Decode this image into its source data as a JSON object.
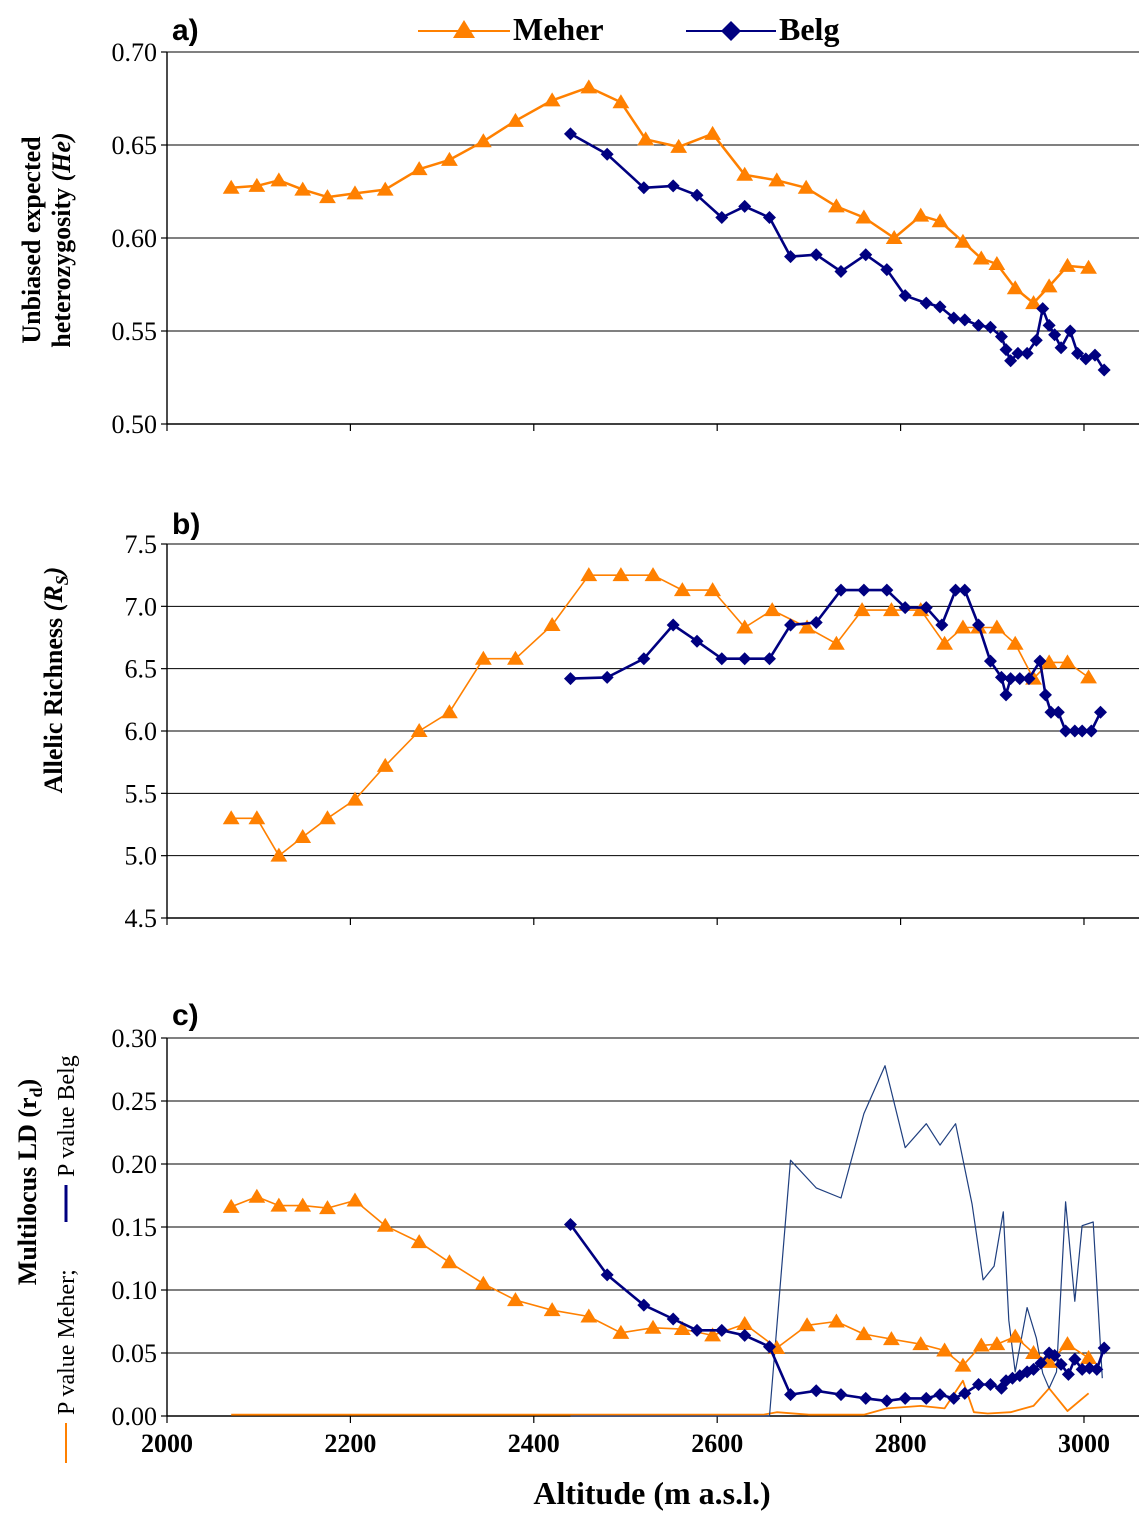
{
  "colors": {
    "meher": "#FF8000",
    "belg": "#000080",
    "belg_p": "#1F3F7F",
    "grid": "#000000"
  },
  "legend": {
    "meher": "Meher",
    "belg": "Belg"
  },
  "x_axis": {
    "label": "Altitude (m a.s.l.)",
    "ticks": [
      "2000",
      "2200",
      "2400",
      "2600",
      "2800",
      "3000"
    ]
  },
  "chart_data": [
    {
      "type": "line",
      "panel": "a)",
      "ylabel_line1": "Unbiased expected",
      "ylabel_line2": "heterozygosity",
      "ylabel_italic": "(He)",
      "xlim": [
        2000,
        3060
      ],
      "ylim": [
        0.5,
        0.7
      ],
      "yticks": [
        "0.50",
        "0.55",
        "0.60",
        "0.65",
        "0.70"
      ],
      "grid": true,
      "legend_position": "top",
      "series": [
        {
          "name": "Meher",
          "marker": "triangle",
          "points": [
            [
              2070,
              0.627
            ],
            [
              2098,
              0.628
            ],
            [
              2122,
              0.631
            ],
            [
              2148,
              0.626
            ],
            [
              2175,
              0.622
            ],
            [
              2205,
              0.624
            ],
            [
              2238,
              0.626
            ],
            [
              2275,
              0.637
            ],
            [
              2308,
              0.642
            ],
            [
              2345,
              0.652
            ],
            [
              2380,
              0.663
            ],
            [
              2420,
              0.674
            ],
            [
              2460,
              0.681
            ],
            [
              2495,
              0.673
            ],
            [
              2522,
              0.653
            ],
            [
              2558,
              0.649
            ],
            [
              2595,
              0.656
            ],
            [
              2630,
              0.634
            ],
            [
              2665,
              0.631
            ],
            [
              2697,
              0.627
            ],
            [
              2730,
              0.617
            ],
            [
              2760,
              0.611
            ],
            [
              2793,
              0.6
            ],
            [
              2822,
              0.612
            ],
            [
              2843,
              0.609
            ],
            [
              2868,
              0.598
            ],
            [
              2888,
              0.589
            ],
            [
              2905,
              0.586
            ],
            [
              2925,
              0.573
            ],
            [
              2945,
              0.565
            ],
            [
              2962,
              0.574
            ],
            [
              2982,
              0.585
            ],
            [
              3005,
              0.584
            ]
          ]
        },
        {
          "name": "Belg",
          "marker": "diamond",
          "points": [
            [
              2440,
              0.656
            ],
            [
              2480,
              0.645
            ],
            [
              2520,
              0.627
            ],
            [
              2552,
              0.628
            ],
            [
              2578,
              0.623
            ],
            [
              2605,
              0.611
            ],
            [
              2630,
              0.617
            ],
            [
              2657,
              0.611
            ],
            [
              2680,
              0.59
            ],
            [
              2708,
              0.591
            ],
            [
              2735,
              0.582
            ],
            [
              2762,
              0.591
            ],
            [
              2785,
              0.583
            ],
            [
              2805,
              0.569
            ],
            [
              2828,
              0.565
            ],
            [
              2843,
              0.563
            ],
            [
              2858,
              0.557
            ],
            [
              2870,
              0.556
            ],
            [
              2885,
              0.553
            ],
            [
              2898,
              0.552
            ],
            [
              2910,
              0.547
            ],
            [
              2915,
              0.54
            ],
            [
              2920,
              0.534
            ],
            [
              2928,
              0.538
            ],
            [
              2938,
              0.538
            ],
            [
              2948,
              0.545
            ],
            [
              2955,
              0.562
            ],
            [
              2962,
              0.553
            ],
            [
              2968,
              0.548
            ],
            [
              2975,
              0.541
            ],
            [
              2985,
              0.55
            ],
            [
              2993,
              0.538
            ],
            [
              3002,
              0.535
            ],
            [
              3012,
              0.537
            ],
            [
              3022,
              0.529
            ]
          ]
        }
      ]
    },
    {
      "type": "line",
      "panel": "b)",
      "ylabel_text": "Allelic Richness ",
      "ylabel_italic": "(R",
      "ylabel_sub": "S",
      "ylabel_close": ")",
      "xlim": [
        2000,
        3060
      ],
      "ylim": [
        4.5,
        7.5
      ],
      "yticks": [
        "4.5",
        "5.0",
        "5.5",
        "6.0",
        "6.5",
        "7.0",
        "7.5"
      ],
      "grid": true,
      "series": [
        {
          "name": "Meher",
          "marker": "triangle",
          "points": [
            [
              2070,
              5.3
            ],
            [
              2098,
              5.3
            ],
            [
              2122,
              5.0
            ],
            [
              2148,
              5.15
            ],
            [
              2175,
              5.3
            ],
            [
              2205,
              5.45
            ],
            [
              2238,
              5.72
            ],
            [
              2275,
              6.0
            ],
            [
              2308,
              6.15
            ],
            [
              2345,
              6.58
            ],
            [
              2380,
              6.58
            ],
            [
              2420,
              6.85
            ],
            [
              2460,
              7.25
            ],
            [
              2495,
              7.25
            ],
            [
              2530,
              7.25
            ],
            [
              2562,
              7.13
            ],
            [
              2595,
              7.13
            ],
            [
              2630,
              6.83
            ],
            [
              2660,
              6.97
            ],
            [
              2698,
              6.83
            ],
            [
              2730,
              6.7
            ],
            [
              2758,
              6.97
            ],
            [
              2790,
              6.97
            ],
            [
              2822,
              6.97
            ],
            [
              2848,
              6.7
            ],
            [
              2868,
              6.83
            ],
            [
              2885,
              6.83
            ],
            [
              2905,
              6.83
            ],
            [
              2925,
              6.7
            ],
            [
              2945,
              6.42
            ],
            [
              2962,
              6.55
            ],
            [
              2982,
              6.55
            ],
            [
              3005,
              6.43
            ]
          ]
        },
        {
          "name": "Belg",
          "marker": "diamond",
          "points": [
            [
              2440,
              6.42
            ],
            [
              2480,
              6.43
            ],
            [
              2520,
              6.58
            ],
            [
              2552,
              6.85
            ],
            [
              2578,
              6.72
            ],
            [
              2605,
              6.58
            ],
            [
              2630,
              6.58
            ],
            [
              2657,
              6.58
            ],
            [
              2680,
              6.85
            ],
            [
              2708,
              6.87
            ],
            [
              2735,
              7.13
            ],
            [
              2760,
              7.13
            ],
            [
              2785,
              7.13
            ],
            [
              2805,
              6.99
            ],
            [
              2828,
              6.99
            ],
            [
              2845,
              6.85
            ],
            [
              2860,
              7.13
            ],
            [
              2870,
              7.13
            ],
            [
              2885,
              6.85
            ],
            [
              2898,
              6.56
            ],
            [
              2910,
              6.43
            ],
            [
              2915,
              6.29
            ],
            [
              2920,
              6.42
            ],
            [
              2930,
              6.42
            ],
            [
              2940,
              6.42
            ],
            [
              2952,
              6.56
            ],
            [
              2958,
              6.29
            ],
            [
              2964,
              6.15
            ],
            [
              2972,
              6.15
            ],
            [
              2980,
              6.0
            ],
            [
              2990,
              6.0
            ],
            [
              2998,
              6.0
            ],
            [
              3008,
              6.0
            ],
            [
              3018,
              6.15
            ]
          ]
        }
      ]
    },
    {
      "type": "line",
      "panel": "c)",
      "ylabel_text": "Multilocus LD (r",
      "ylabel_sub": "d",
      "ylabel_close": ")",
      "legend_p_meher": "P value Meher;",
      "legend_p_belg": "P value Belg",
      "xlim": [
        2000,
        3060
      ],
      "ylim": [
        0.0,
        0.3
      ],
      "yticks": [
        "0.00",
        "0.05",
        "0.10",
        "0.15",
        "0.20",
        "0.25",
        "0.30"
      ],
      "grid": true,
      "series": [
        {
          "name": "Meher",
          "marker": "triangle",
          "points": [
            [
              2070,
              0.166
            ],
            [
              2098,
              0.174
            ],
            [
              2122,
              0.167
            ],
            [
              2148,
              0.167
            ],
            [
              2175,
              0.165
            ],
            [
              2205,
              0.171
            ],
            [
              2238,
              0.151
            ],
            [
              2275,
              0.138
            ],
            [
              2308,
              0.122
            ],
            [
              2345,
              0.105
            ],
            [
              2380,
              0.092
            ],
            [
              2420,
              0.084
            ],
            [
              2460,
              0.079
            ],
            [
              2495,
              0.066
            ],
            [
              2530,
              0.07
            ],
            [
              2562,
              0.069
            ],
            [
              2595,
              0.064
            ],
            [
              2630,
              0.073
            ],
            [
              2665,
              0.054
            ],
            [
              2698,
              0.072
            ],
            [
              2730,
              0.075
            ],
            [
              2760,
              0.065
            ],
            [
              2790,
              0.061
            ],
            [
              2822,
              0.057
            ],
            [
              2848,
              0.052
            ],
            [
              2868,
              0.04
            ],
            [
              2888,
              0.056
            ],
            [
              2905,
              0.057
            ],
            [
              2925,
              0.063
            ],
            [
              2945,
              0.05
            ],
            [
              2962,
              0.043
            ],
            [
              2982,
              0.057
            ],
            [
              3005,
              0.046
            ]
          ]
        },
        {
          "name": "Belg",
          "marker": "diamond",
          "points": [
            [
              2440,
              0.152
            ],
            [
              2480,
              0.112
            ],
            [
              2520,
              0.088
            ],
            [
              2552,
              0.077
            ],
            [
              2578,
              0.068
            ],
            [
              2605,
              0.068
            ],
            [
              2630,
              0.064
            ],
            [
              2657,
              0.055
            ],
            [
              2680,
              0.017
            ],
            [
              2708,
              0.02
            ],
            [
              2735,
              0.017
            ],
            [
              2762,
              0.014
            ],
            [
              2785,
              0.012
            ],
            [
              2805,
              0.014
            ],
            [
              2828,
              0.014
            ],
            [
              2843,
              0.017
            ],
            [
              2858,
              0.014
            ],
            [
              2870,
              0.018
            ],
            [
              2885,
              0.025
            ],
            [
              2898,
              0.025
            ],
            [
              2910,
              0.022
            ],
            [
              2915,
              0.028
            ],
            [
              2922,
              0.03
            ],
            [
              2930,
              0.032
            ],
            [
              2938,
              0.035
            ],
            [
              2945,
              0.037
            ],
            [
              2953,
              0.042
            ],
            [
              2962,
              0.05
            ],
            [
              2968,
              0.048
            ],
            [
              2975,
              0.041
            ],
            [
              2983,
              0.033
            ],
            [
              2990,
              0.045
            ],
            [
              2998,
              0.037
            ],
            [
              3006,
              0.038
            ],
            [
              3014,
              0.037
            ],
            [
              3022,
              0.054
            ]
          ]
        },
        {
          "name": "P value Meher",
          "marker": "none",
          "points": [
            [
              2070,
              0.001
            ],
            [
              2400,
              0.001
            ],
            [
              2650,
              0.001
            ],
            [
              2665,
              0.003
            ],
            [
              2700,
              0.001
            ],
            [
              2760,
              0.001
            ],
            [
              2785,
              0.006
            ],
            [
              2822,
              0.008
            ],
            [
              2848,
              0.006
            ],
            [
              2868,
              0.028
            ],
            [
              2880,
              0.003
            ],
            [
              2895,
              0.002
            ],
            [
              2920,
              0.003
            ],
            [
              2945,
              0.008
            ],
            [
              2962,
              0.022
            ],
            [
              2982,
              0.004
            ],
            [
              3005,
              0.018
            ]
          ]
        },
        {
          "name": "P value Belg",
          "marker": "none",
          "points": [
            [
              2440,
              0.0
            ],
            [
              2657,
              0.0
            ],
            [
              2680,
              0.203
            ],
            [
              2708,
              0.181
            ],
            [
              2735,
              0.173
            ],
            [
              2760,
              0.24
            ],
            [
              2783,
              0.278
            ],
            [
              2805,
              0.213
            ],
            [
              2828,
              0.232
            ],
            [
              2843,
              0.215
            ],
            [
              2860,
              0.232
            ],
            [
              2878,
              0.168
            ],
            [
              2890,
              0.108
            ],
            [
              2902,
              0.119
            ],
            [
              2912,
              0.162
            ],
            [
              2918,
              0.076
            ],
            [
              2925,
              0.035
            ],
            [
              2938,
              0.086
            ],
            [
              2948,
              0.062
            ],
            [
              2955,
              0.034
            ],
            [
              2962,
              0.022
            ],
            [
              2970,
              0.035
            ],
            [
              2980,
              0.17
            ],
            [
              2990,
              0.091
            ],
            [
              2998,
              0.151
            ],
            [
              3010,
              0.154
            ],
            [
              3020,
              0.03
            ]
          ]
        }
      ]
    }
  ]
}
